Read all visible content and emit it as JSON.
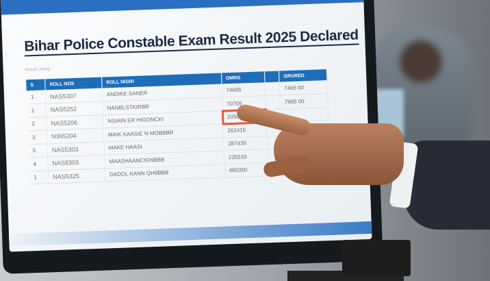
{
  "page": {
    "title": "Bihar Police Constable Exam Result 2025 Declared",
    "subtitle": "Result Listing"
  },
  "table": {
    "headers": [
      "S",
      "ROLL NOS",
      "ROLL NIGRI",
      "OMRG",
      "",
      "GRURED"
    ],
    "rows": [
      [
        "1",
        "NAS5307",
        "ANDIKE SANER",
        "74685",
        "",
        "7465 00"
      ],
      [
        "1",
        "NAS5252",
        "NANBLSTKIRBR",
        "70709",
        "",
        "7965 00"
      ],
      [
        "2",
        "NAS5206",
        "NSIAIN ER HIGONCKI",
        "205093",
        "",
        ""
      ],
      [
        "3",
        "N365204",
        "MAIK KAASIE N MOBBBR",
        "262415",
        "",
        ""
      ],
      [
        "5",
        "NAS5303",
        "MAKE HAASI",
        "287430",
        "",
        ""
      ],
      [
        "4",
        "NAS8303",
        "MAASHAANCIGNBBB",
        "235533",
        "",
        ""
      ],
      [
        "1",
        "NAS5325",
        "DADOL KANN QH9BBB",
        "485350",
        "",
        ""
      ]
    ],
    "highlighted_row": 2,
    "highlight_color": "#e8573a",
    "header_color": "#1e6db8"
  }
}
